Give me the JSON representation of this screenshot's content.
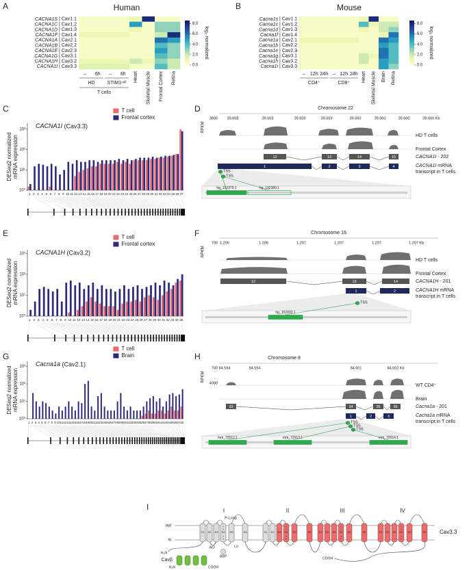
{
  "panel_labels": [
    "A",
    "B",
    "C",
    "D",
    "E",
    "F",
    "G",
    "H",
    "I"
  ],
  "chart_data": [
    {
      "type": "heatmap",
      "title": "Human",
      "rows": [
        "CACNA1S | Cav1.1",
        "CACNA1C | Cav1.2",
        "CACNA1D | Cav1.3",
        "CACNA1F | Cav1.4",
        "CACNA1A | Cav2.1",
        "CACNA1B | Cav2.2",
        "CACNA1E | Cav2.3",
        "CACNA1G | Cav3.1",
        "CACNA1H | Cav3.2",
        "CACNA1I | Cav3.3"
      ],
      "columns": [
        "–",
        "6h",
        "–",
        "6h",
        "Heart",
        "Skeletal Muscle",
        "Frontal Cortex",
        "Retina"
      ],
      "groups": [
        "HD",
        "STIM1ⁿᵘˡˡ"
      ],
      "group_label": "T cells",
      "values": [
        [
          0.5,
          0.5,
          0.5,
          0.5,
          1,
          8,
          0.5,
          0.5
        ],
        [
          0.5,
          0.5,
          0.5,
          0.5,
          5,
          0.5,
          3,
          3
        ],
        [
          0.5,
          0.5,
          0.5,
          0.5,
          1,
          0.5,
          3,
          3
        ],
        [
          1,
          1,
          1,
          1,
          0.5,
          0.5,
          2,
          8
        ],
        [
          0.5,
          0.5,
          0.5,
          0.5,
          0.5,
          0.5,
          6,
          5
        ],
        [
          0.5,
          0.5,
          0.5,
          0.5,
          0.5,
          0.5,
          4,
          3
        ],
        [
          0.5,
          0.5,
          0.5,
          0.5,
          0.5,
          0.5,
          5,
          3
        ],
        [
          0.5,
          0.5,
          0.5,
          0.5,
          0.5,
          0.5,
          4,
          3
        ],
        [
          1,
          1,
          1,
          1,
          2,
          1,
          3,
          2
        ],
        [
          1.5,
          1.5,
          1.5,
          1.5,
          0.5,
          0.5,
          4,
          2
        ]
      ],
      "zlim": [
        0,
        8.6
      ],
      "colorscale": [
        "#ffffd9",
        "#edf8b1",
        "#c7e9b4",
        "#7fcdbb",
        "#41b6c4",
        "#1d91c0",
        "#225ea8",
        "#253494",
        "#081d58"
      ],
      "colorbar_ticks": [
        {
          "value": 0,
          "label": "0.0"
        },
        {
          "value": 2,
          "label": "2.0"
        },
        {
          "value": 4,
          "label": "4.0"
        },
        {
          "value": 6,
          "label": "6.0"
        },
        {
          "value": 8,
          "label": "8.0"
        }
      ],
      "colorbar_label": "log₂ normalized"
    },
    {
      "type": "heatmap",
      "title": "Mouse",
      "rows": [
        "Cacna1s | Cav1.1",
        "Cacna1c | Cav1.2",
        "Cacna1d | Cav1.3",
        "Cacna1f | Cav1.4",
        "Cacna1a | Cav2.1",
        "Cacna1b | Cav2.2",
        "Cacna1e | Cav2.3",
        "Cacna1g | Cav3.1",
        "Cacna1h | Cav3.2",
        "Cacna1i | Cav3.3"
      ],
      "columns": [
        "–",
        "12h",
        "24h",
        "–",
        "12h",
        "24h",
        "Heart",
        "Skeletal Muscle",
        "Brain",
        "Retina"
      ],
      "groups": [
        "CD4⁺",
        "CD8⁺"
      ],
      "values": [
        [
          0.5,
          0.5,
          0.5,
          0.5,
          0.5,
          0.5,
          1,
          8,
          0.5,
          0.5
        ],
        [
          0.5,
          0.5,
          0.5,
          0.5,
          0.5,
          0.5,
          4,
          1,
          2,
          2
        ],
        [
          0.5,
          0.5,
          0.5,
          0.5,
          0.5,
          0.5,
          1,
          0.5,
          2,
          3
        ],
        [
          0.5,
          0.5,
          0.5,
          0.5,
          0.5,
          0.5,
          0.5,
          0.5,
          1,
          6
        ],
        [
          1,
          1,
          1,
          1,
          1,
          1,
          0.5,
          0.5,
          6,
          5
        ],
        [
          0.5,
          0.5,
          0.5,
          0.5,
          0.5,
          0.5,
          0.5,
          0.5,
          5,
          4
        ],
        [
          0.5,
          0.5,
          0.5,
          0.5,
          0.5,
          0.5,
          0.5,
          0.5,
          6,
          4
        ],
        [
          0.5,
          0.5,
          0.5,
          0.5,
          0.5,
          0.5,
          2,
          1,
          6,
          4
        ],
        [
          0.5,
          0.5,
          0.5,
          0.5,
          0.5,
          0.5,
          2,
          0.5,
          5,
          4
        ],
        [
          0.5,
          0.5,
          0.5,
          0.5,
          0.5,
          0.5,
          0.5,
          0.5,
          5,
          3
        ]
      ],
      "zlim": [
        0,
        8.6
      ],
      "colorscale": [
        "#ffffd9",
        "#edf8b1",
        "#c7e9b4",
        "#7fcdbb",
        "#41b6c4",
        "#1d91c0",
        "#225ea8",
        "#253494",
        "#081d58"
      ],
      "colorbar_ticks": [
        {
          "value": 0,
          "label": "0.0"
        },
        {
          "value": 2,
          "label": "2.0"
        },
        {
          "value": 4,
          "label": "4.0"
        },
        {
          "value": 6,
          "label": "6.0"
        },
        {
          "value": 8,
          "label": "8.0"
        }
      ],
      "colorbar_label": "log₂ normalized"
    },
    {
      "type": "bar",
      "title": "CACNA1I (Cav3.3)",
      "ylabel": [
        "DESeq2 normalized",
        "mRNA expression"
      ],
      "log": true,
      "ylim": [
        1,
        2000
      ],
      "yticks": [
        {
          "value": 1,
          "label": "10⁰"
        },
        {
          "value": 10,
          "label": "10¹"
        },
        {
          "value": 100,
          "label": "10²"
        },
        {
          "value": 1000,
          "label": "10³"
        }
      ],
      "categories": [
        "1",
        "2",
        "3",
        "4",
        "5",
        "6",
        "7",
        "8",
        "9",
        "10",
        "11",
        "12",
        "13",
        "14",
        "15",
        "16",
        "17",
        "18",
        "19",
        "20",
        "21",
        "22",
        "23",
        "24",
        "25",
        "26",
        "27",
        "28",
        "29",
        "30",
        "31",
        "32",
        "33",
        "34",
        "35",
        "36",
        "37"
      ],
      "series": [
        {
          "name": "T cell",
          "color": "#e8686c",
          "values": [
            1.5,
            1,
            1,
            1,
            1,
            1.5,
            1,
            1,
            1,
            1,
            1,
            5,
            8,
            10,
            12,
            15,
            15,
            20,
            20,
            20,
            20,
            25,
            20,
            25,
            20,
            30,
            30,
            30,
            30,
            35,
            35,
            40,
            40,
            45,
            50,
            60,
            1000
          ]
        },
        {
          "name": "Frontal cortex",
          "color": "#2c2a78",
          "values": [
            2,
            15,
            20,
            18,
            15,
            20,
            15,
            6,
            10,
            25,
            20,
            30,
            25,
            25,
            30,
            30,
            25,
            30,
            30,
            30,
            30,
            35,
            30,
            35,
            30,
            35,
            40,
            40,
            40,
            45,
            40,
            45,
            50,
            50,
            55,
            60,
            800
          ]
        }
      ]
    },
    {
      "type": "bar",
      "title": "CACNA1H (Cav3.2)",
      "ylabel": [
        "DESeq2 normalized",
        "mRNA expression"
      ],
      "log": true,
      "ylim": [
        1,
        1500
      ],
      "yticks": [
        {
          "value": 1,
          "label": "10⁰"
        },
        {
          "value": 10,
          "label": "10¹"
        },
        {
          "value": 100,
          "label": "10²"
        },
        {
          "value": 1000,
          "label": "10³"
        }
      ],
      "categories": [
        "1",
        "2",
        "3",
        "4",
        "5",
        "6",
        "7",
        "8",
        "9",
        "10",
        "11",
        "12",
        "13",
        "14",
        "15",
        "16",
        "17",
        "18",
        "19",
        "20",
        "21",
        "22",
        "23",
        "24",
        "25",
        "26",
        "27",
        "28",
        "29",
        "30",
        "31",
        "32",
        "33",
        "34",
        "35"
      ],
      "series": [
        {
          "name": "T cell",
          "color": "#e8686c",
          "values": [
            1,
            1,
            1,
            1,
            1,
            1,
            1,
            1,
            1,
            1.5,
            1,
            2,
            3,
            5,
            8,
            5,
            4,
            3,
            3,
            3,
            2,
            4,
            5,
            5,
            6,
            5,
            8,
            10,
            8,
            6,
            10,
            15,
            20,
            40,
            50
          ]
        },
        {
          "name": "Frontal cortex",
          "color": "#2c2a78",
          "values": [
            2,
            5,
            20,
            25,
            20,
            15,
            20,
            5,
            40,
            50,
            30,
            40,
            20,
            30,
            40,
            20,
            30,
            20,
            20,
            15,
            20,
            30,
            20,
            25,
            30,
            20,
            25,
            30,
            40,
            30,
            50,
            40,
            30,
            60,
            100
          ]
        }
      ]
    },
    {
      "type": "bar",
      "title": "Cacna1a (Cav2.1)",
      "ylabel": [
        "DESeq2 normalized",
        "mRNA expression"
      ],
      "log": true,
      "ylim": [
        1,
        2000
      ],
      "yticks": [
        {
          "value": 1,
          "label": "10⁰"
        },
        {
          "value": 10,
          "label": "10¹"
        },
        {
          "value": 100,
          "label": "10²"
        },
        {
          "value": 1000,
          "label": "10³"
        }
      ],
      "categories": [
        "1",
        "2",
        "3",
        "4",
        "5",
        "6",
        "7",
        "8",
        "9",
        "10",
        "11",
        "12",
        "13",
        "14",
        "15",
        "16",
        "17",
        "18",
        "19",
        "20",
        "21",
        "22",
        "23",
        "24",
        "25",
        "26",
        "27",
        "28",
        "29",
        "30",
        "31",
        "32",
        "33",
        "34",
        "35",
        "36",
        "37",
        "38",
        "39",
        "40",
        "41",
        "42",
        "43",
        "44",
        "45",
        "46",
        "47",
        "48"
      ],
      "series": [
        {
          "name": "T cell",
          "color": "#e8686c",
          "values": [
            1,
            1,
            1,
            1,
            1,
            1,
            1,
            1,
            1,
            1,
            1,
            1,
            1,
            1,
            1,
            1,
            1,
            1,
            1,
            1,
            1,
            1,
            1,
            1,
            1,
            1,
            1,
            1,
            1,
            1,
            1,
            1,
            1,
            1,
            1,
            1.5,
            2,
            3,
            2,
            2,
            3,
            3,
            2,
            3,
            5,
            3,
            3,
            5
          ]
        },
        {
          "name": "Brain",
          "color": "#2c2a78",
          "values": [
            1,
            30,
            10,
            5,
            10,
            8,
            5,
            3,
            2,
            5,
            3,
            5,
            10,
            5,
            3,
            10,
            8,
            100,
            150,
            5,
            3,
            20,
            30,
            5,
            3,
            3,
            3,
            10,
            30,
            5,
            3,
            5,
            3,
            3,
            3,
            5,
            10,
            15,
            20,
            10,
            15,
            5,
            10,
            25,
            30,
            20,
            25,
            50
          ]
        }
      ]
    }
  ],
  "panels": {
    "D": {
      "chromosome": "Chromosome 22",
      "positions": [
        "39.658",
        "39.659",
        "39.659",
        "39.659",
        "39.660",
        "39.660",
        "39.660",
        "39.660 Kb"
      ],
      "rpkm": "RPKM",
      "scale": [
        "3800"
      ],
      "tracks": [
        "HD T cells",
        "Frontal Cortex"
      ],
      "isoform": "CACNA1I - 202",
      "transcript": [
        "CACNA1I mRNA",
        "transcript in T cells"
      ],
      "isoform_exons": [
        "12",
        "13",
        "14",
        "15"
      ],
      "transcript_exons": [
        "1",
        "2",
        "3",
        "4"
      ],
      "tss": [
        "TSS",
        "TSS"
      ],
      "reads": [
        "hg_192379.1",
        "hg_192380.1"
      ]
    },
    "F": {
      "chromosome": "Chromosome 16",
      "positions": [
        "1.206",
        "1.206",
        "1.207",
        "1.207",
        "1.207",
        "1.207 Kb"
      ],
      "rpkm": "RPKM",
      "scale": [
        "700"
      ],
      "tracks": [
        "HD T cells",
        "Frontal Cortex"
      ],
      "isoform": "CACNA1H - 201",
      "transcript": [
        "CACNA1H mRNA",
        "transcript in T cells"
      ],
      "isoform_exons": [
        "12",
        "13",
        "14"
      ],
      "transcript_exons": [
        "1",
        "2"
      ],
      "tss": [
        "TSS"
      ],
      "reads": [
        "hg_152030.1"
      ]
    },
    "H": {
      "chromosome": "Chromosome 8",
      "positions": [
        "84.594",
        "84.594",
        "84.601",
        "84.602 Kb"
      ],
      "rpkm": "RPKM",
      "scale": [
        "700",
        "4000"
      ],
      "tracks": [
        "WT CD4⁺",
        "Brain"
      ],
      "isoform": "Cacna1a - 201",
      "transcript": [
        "Cacna1a mRNA",
        "transcript in T cells"
      ],
      "isoform_exons": [
        "33",
        "34",
        "35",
        "36"
      ],
      "transcript_exons": [
        "1",
        "2",
        "3"
      ],
      "tss": [
        "TSS",
        "TSS",
        "TSS"
      ],
      "reads": [
        "mm_72612.1",
        "mm_72613.1",
        "mm_72614.1"
      ]
    },
    "I": {
      "domains": [
        "I",
        "II",
        "III",
        "IV"
      ],
      "segments": [
        "S1",
        "S2",
        "S3",
        "S4",
        "S5",
        "S6"
      ],
      "charge": "+",
      "out": "out",
      "in": "in",
      "ploop": "P-Loop",
      "aid": "AID",
      "linker": "I-II",
      "abp": "ABP",
      "beta": "Cavβ",
      "nterm": "H₂N",
      "cterm": "COOH",
      "channel": "Cav3.3"
    }
  }
}
